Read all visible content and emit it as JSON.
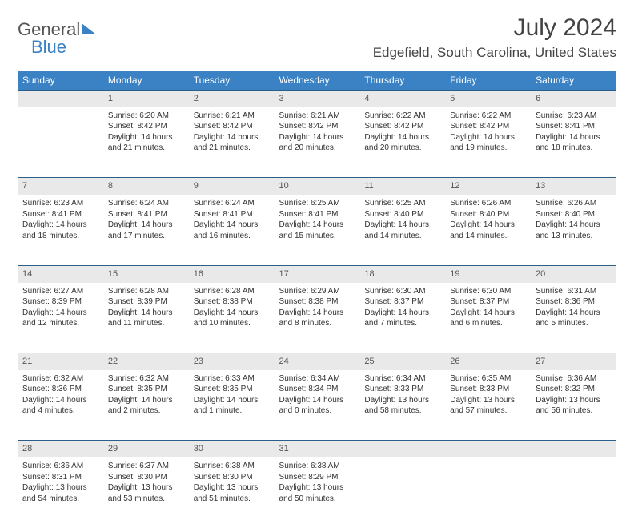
{
  "brand": {
    "part1": "General",
    "part2": "Blue"
  },
  "title": "July 2024",
  "location": "Edgefield, South Carolina, United States",
  "colors": {
    "header_bg": "#3b82c4",
    "header_text": "#ffffff",
    "daynum_bg": "#e9e9e9",
    "row_divider": "#2b5f8a",
    "body_text": "#333333",
    "title_text": "#444444"
  },
  "typography": {
    "month_title_fontsize": 30,
    "location_fontsize": 17,
    "dayheader_fontsize": 12,
    "cell_fontsize": 10
  },
  "day_headers": [
    "Sunday",
    "Monday",
    "Tuesday",
    "Wednesday",
    "Thursday",
    "Friday",
    "Saturday"
  ],
  "weeks": [
    {
      "nums": [
        "",
        "1",
        "2",
        "3",
        "4",
        "5",
        "6"
      ],
      "cells": [
        null,
        {
          "sunrise": "Sunrise: 6:20 AM",
          "sunset": "Sunset: 8:42 PM",
          "day1": "Daylight: 14 hours",
          "day2": "and 21 minutes."
        },
        {
          "sunrise": "Sunrise: 6:21 AM",
          "sunset": "Sunset: 8:42 PM",
          "day1": "Daylight: 14 hours",
          "day2": "and 21 minutes."
        },
        {
          "sunrise": "Sunrise: 6:21 AM",
          "sunset": "Sunset: 8:42 PM",
          "day1": "Daylight: 14 hours",
          "day2": "and 20 minutes."
        },
        {
          "sunrise": "Sunrise: 6:22 AM",
          "sunset": "Sunset: 8:42 PM",
          "day1": "Daylight: 14 hours",
          "day2": "and 20 minutes."
        },
        {
          "sunrise": "Sunrise: 6:22 AM",
          "sunset": "Sunset: 8:42 PM",
          "day1": "Daylight: 14 hours",
          "day2": "and 19 minutes."
        },
        {
          "sunrise": "Sunrise: 6:23 AM",
          "sunset": "Sunset: 8:41 PM",
          "day1": "Daylight: 14 hours",
          "day2": "and 18 minutes."
        }
      ]
    },
    {
      "nums": [
        "7",
        "8",
        "9",
        "10",
        "11",
        "12",
        "13"
      ],
      "cells": [
        {
          "sunrise": "Sunrise: 6:23 AM",
          "sunset": "Sunset: 8:41 PM",
          "day1": "Daylight: 14 hours",
          "day2": "and 18 minutes."
        },
        {
          "sunrise": "Sunrise: 6:24 AM",
          "sunset": "Sunset: 8:41 PM",
          "day1": "Daylight: 14 hours",
          "day2": "and 17 minutes."
        },
        {
          "sunrise": "Sunrise: 6:24 AM",
          "sunset": "Sunset: 8:41 PM",
          "day1": "Daylight: 14 hours",
          "day2": "and 16 minutes."
        },
        {
          "sunrise": "Sunrise: 6:25 AM",
          "sunset": "Sunset: 8:41 PM",
          "day1": "Daylight: 14 hours",
          "day2": "and 15 minutes."
        },
        {
          "sunrise": "Sunrise: 6:25 AM",
          "sunset": "Sunset: 8:40 PM",
          "day1": "Daylight: 14 hours",
          "day2": "and 14 minutes."
        },
        {
          "sunrise": "Sunrise: 6:26 AM",
          "sunset": "Sunset: 8:40 PM",
          "day1": "Daylight: 14 hours",
          "day2": "and 14 minutes."
        },
        {
          "sunrise": "Sunrise: 6:26 AM",
          "sunset": "Sunset: 8:40 PM",
          "day1": "Daylight: 14 hours",
          "day2": "and 13 minutes."
        }
      ]
    },
    {
      "nums": [
        "14",
        "15",
        "16",
        "17",
        "18",
        "19",
        "20"
      ],
      "cells": [
        {
          "sunrise": "Sunrise: 6:27 AM",
          "sunset": "Sunset: 8:39 PM",
          "day1": "Daylight: 14 hours",
          "day2": "and 12 minutes."
        },
        {
          "sunrise": "Sunrise: 6:28 AM",
          "sunset": "Sunset: 8:39 PM",
          "day1": "Daylight: 14 hours",
          "day2": "and 11 minutes."
        },
        {
          "sunrise": "Sunrise: 6:28 AM",
          "sunset": "Sunset: 8:38 PM",
          "day1": "Daylight: 14 hours",
          "day2": "and 10 minutes."
        },
        {
          "sunrise": "Sunrise: 6:29 AM",
          "sunset": "Sunset: 8:38 PM",
          "day1": "Daylight: 14 hours",
          "day2": "and 8 minutes."
        },
        {
          "sunrise": "Sunrise: 6:30 AM",
          "sunset": "Sunset: 8:37 PM",
          "day1": "Daylight: 14 hours",
          "day2": "and 7 minutes."
        },
        {
          "sunrise": "Sunrise: 6:30 AM",
          "sunset": "Sunset: 8:37 PM",
          "day1": "Daylight: 14 hours",
          "day2": "and 6 minutes."
        },
        {
          "sunrise": "Sunrise: 6:31 AM",
          "sunset": "Sunset: 8:36 PM",
          "day1": "Daylight: 14 hours",
          "day2": "and 5 minutes."
        }
      ]
    },
    {
      "nums": [
        "21",
        "22",
        "23",
        "24",
        "25",
        "26",
        "27"
      ],
      "cells": [
        {
          "sunrise": "Sunrise: 6:32 AM",
          "sunset": "Sunset: 8:36 PM",
          "day1": "Daylight: 14 hours",
          "day2": "and 4 minutes."
        },
        {
          "sunrise": "Sunrise: 6:32 AM",
          "sunset": "Sunset: 8:35 PM",
          "day1": "Daylight: 14 hours",
          "day2": "and 2 minutes."
        },
        {
          "sunrise": "Sunrise: 6:33 AM",
          "sunset": "Sunset: 8:35 PM",
          "day1": "Daylight: 14 hours",
          "day2": "and 1 minute."
        },
        {
          "sunrise": "Sunrise: 6:34 AM",
          "sunset": "Sunset: 8:34 PM",
          "day1": "Daylight: 14 hours",
          "day2": "and 0 minutes."
        },
        {
          "sunrise": "Sunrise: 6:34 AM",
          "sunset": "Sunset: 8:33 PM",
          "day1": "Daylight: 13 hours",
          "day2": "and 58 minutes."
        },
        {
          "sunrise": "Sunrise: 6:35 AM",
          "sunset": "Sunset: 8:33 PM",
          "day1": "Daylight: 13 hours",
          "day2": "and 57 minutes."
        },
        {
          "sunrise": "Sunrise: 6:36 AM",
          "sunset": "Sunset: 8:32 PM",
          "day1": "Daylight: 13 hours",
          "day2": "and 56 minutes."
        }
      ]
    },
    {
      "nums": [
        "28",
        "29",
        "30",
        "31",
        "",
        "",
        ""
      ],
      "cells": [
        {
          "sunrise": "Sunrise: 6:36 AM",
          "sunset": "Sunset: 8:31 PM",
          "day1": "Daylight: 13 hours",
          "day2": "and 54 minutes."
        },
        {
          "sunrise": "Sunrise: 6:37 AM",
          "sunset": "Sunset: 8:30 PM",
          "day1": "Daylight: 13 hours",
          "day2": "and 53 minutes."
        },
        {
          "sunrise": "Sunrise: 6:38 AM",
          "sunset": "Sunset: 8:30 PM",
          "day1": "Daylight: 13 hours",
          "day2": "and 51 minutes."
        },
        {
          "sunrise": "Sunrise: 6:38 AM",
          "sunset": "Sunset: 8:29 PM",
          "day1": "Daylight: 13 hours",
          "day2": "and 50 minutes."
        },
        null,
        null,
        null
      ]
    }
  ]
}
